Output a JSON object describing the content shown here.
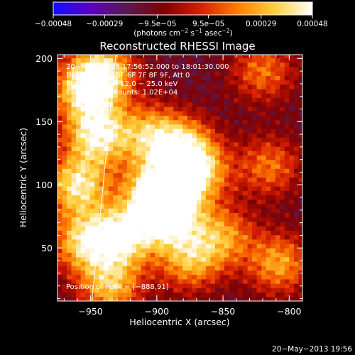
{
  "chart_data": {
    "type": "heatmap",
    "title": "Reconstructed RHESSI Image",
    "xlabel": "Heliocentric X (arcsec)",
    "ylabel": "Heliocentric Y (arcsec)",
    "xlim": [
      -975,
      -790
    ],
    "ylim": [
      8,
      203
    ],
    "x_ticks": [
      -950,
      -900,
      -850,
      -800
    ],
    "x_tick_labels": [
      "−950",
      "−900",
      "−850",
      "−800"
    ],
    "y_ticks": [
      50,
      100,
      150,
      200
    ],
    "y_tick_labels": [
      "50",
      "100",
      "150",
      "200"
    ],
    "colorbar": {
      "min": -0.00048,
      "max": 0.00048,
      "tick_values": [
        -0.00048,
        -0.00029,
        -9.5e-05,
        9.5e-05,
        0.00029,
        0.00048
      ],
      "tick_labels": [
        "−0.00048",
        "−0.00029",
        "−9.5e−05",
        "9.5e−05",
        "0.00029",
        "0.00048"
      ],
      "units_main": "(photons cm",
      "units_sup1": "−2",
      "units_mid": " s",
      "units_sup2": "−1",
      "units_mid2": " asec",
      "units_sup3": "−2",
      "units_end": ")",
      "colors": [
        "#1010ff",
        "#5a00c0",
        "#5a1a50",
        "#800000",
        "#d82000",
        "#ff8000",
        "#ffd040",
        "#ffffff"
      ]
    },
    "annotations": {
      "time_range": "20−May−2013 17:56:52.000 to 18:01:30.000",
      "detectors": "Detectors: 3F 5F 6F 7F 8F 9F, Att 0",
      "energy": "Energy Range: 12.0 − 25.0 keV",
      "method": "Clean    Total counts: 1.02E+04",
      "peak": "Position of Peak = [−888,91]"
    },
    "limb_line": [
      [
        -949,
        8
      ],
      [
        -931,
        203
      ]
    ],
    "sources": [
      {
        "x": -900,
        "y": 95,
        "value": 0.00048
      },
      {
        "x": -925,
        "y": 60,
        "value": 0.0004
      },
      {
        "x": -890,
        "y": 75,
        "value": 0.0004
      },
      {
        "x": -945,
        "y": 140,
        "value": 0.00042
      },
      {
        "x": -960,
        "y": 100,
        "value": 0.0004
      },
      {
        "x": -955,
        "y": 55,
        "value": 0.00035
      },
      {
        "x": -940,
        "y": 190,
        "value": 0.00035
      },
      {
        "x": -955,
        "y": 175,
        "value": 0.00032
      },
      {
        "x": -870,
        "y": 110,
        "value": 0.00034
      },
      {
        "x": -880,
        "y": 130,
        "value": 0.0003
      },
      {
        "x": -905,
        "y": 140,
        "value": 0.00026
      },
      {
        "x": -935,
        "y": 20,
        "value": 0.0003
      },
      {
        "x": -875,
        "y": 40,
        "value": 0.00026
      },
      {
        "x": -850,
        "y": 60,
        "value": 0.00022
      },
      {
        "x": -808,
        "y": 38,
        "value": 0.00026
      },
      {
        "x": -815,
        "y": 115,
        "value": 0.00018
      },
      {
        "x": -820,
        "y": 190,
        "value": 0.00018
      }
    ]
  },
  "footer": {
    "timestamp": "20−May−2013 19:56"
  }
}
